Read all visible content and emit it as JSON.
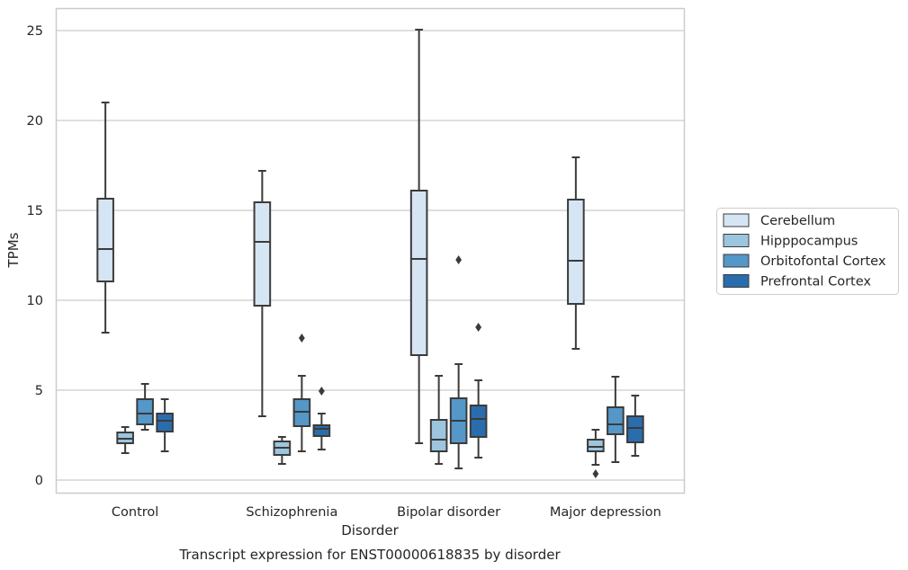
{
  "chart_data": {
    "type": "box",
    "caption": "Transcript expression for ENST00000618835 by disorder",
    "xlabel": "Disorder",
    "ylabel": "TPMs",
    "ylim": [
      -0.7,
      26.2
    ],
    "yticks": [
      0,
      5,
      10,
      15,
      20,
      25
    ],
    "grid": "horizontal",
    "legend_position": "right",
    "categories": [
      "Control",
      "Schizophrenia",
      "Bipolar disorder",
      "Major depression"
    ],
    "series": [
      {
        "name": "Cerebellum",
        "color": "#d6e5f3",
        "boxes": [
          {
            "whisker_low": 8.2,
            "q1": 11.05,
            "median": 12.85,
            "q3": 15.65,
            "whisker_high": 21.0,
            "outliers": []
          },
          {
            "whisker_low": 3.55,
            "q1": 9.7,
            "median": 13.25,
            "q3": 15.45,
            "whisker_high": 17.2,
            "outliers": []
          },
          {
            "whisker_low": 2.05,
            "q1": 6.95,
            "median": 12.3,
            "q3": 16.1,
            "whisker_high": 25.05,
            "outliers": []
          },
          {
            "whisker_low": 7.3,
            "q1": 9.8,
            "median": 12.2,
            "q3": 15.6,
            "whisker_high": 17.95,
            "outliers": []
          }
        ]
      },
      {
        "name": "Hipppocampus",
        "color": "#9cc5de",
        "boxes": [
          {
            "whisker_low": 1.5,
            "q1": 2.05,
            "median": 2.3,
            "q3": 2.65,
            "whisker_high": 2.95,
            "outliers": []
          },
          {
            "whisker_low": 0.9,
            "q1": 1.4,
            "median": 1.8,
            "q3": 2.15,
            "whisker_high": 2.4,
            "outliers": []
          },
          {
            "whisker_low": 0.9,
            "q1": 1.6,
            "median": 2.25,
            "q3": 3.35,
            "whisker_high": 5.8,
            "outliers": []
          },
          {
            "whisker_low": 0.85,
            "q1": 1.6,
            "median": 1.85,
            "q3": 2.25,
            "whisker_high": 2.8,
            "outliers": [
              0.35
            ]
          }
        ]
      },
      {
        "name": "Orbitofontal Cortex",
        "color": "#5497c8",
        "boxes": [
          {
            "whisker_low": 2.8,
            "q1": 3.1,
            "median": 3.7,
            "q3": 4.5,
            "whisker_high": 5.35,
            "outliers": []
          },
          {
            "whisker_low": 1.6,
            "q1": 3.0,
            "median": 3.8,
            "q3": 4.5,
            "whisker_high": 5.8,
            "outliers": [
              7.9
            ]
          },
          {
            "whisker_low": 0.65,
            "q1": 2.05,
            "median": 3.3,
            "q3": 4.55,
            "whisker_high": 6.45,
            "outliers": [
              12.25
            ]
          },
          {
            "whisker_low": 1.0,
            "q1": 2.55,
            "median": 3.1,
            "q3": 4.05,
            "whisker_high": 5.75,
            "outliers": []
          }
        ]
      },
      {
        "name": "Prefrontal Cortex",
        "color": "#2a6dad",
        "boxes": [
          {
            "whisker_low": 1.6,
            "q1": 2.7,
            "median": 3.3,
            "q3": 3.7,
            "whisker_high": 4.5,
            "outliers": []
          },
          {
            "whisker_low": 1.7,
            "q1": 2.45,
            "median": 2.85,
            "q3": 3.05,
            "whisker_high": 3.7,
            "outliers": [
              4.95
            ]
          },
          {
            "whisker_low": 1.25,
            "q1": 2.4,
            "median": 3.4,
            "q3": 4.15,
            "whisker_high": 5.55,
            "outliers": [
              8.5
            ]
          },
          {
            "whisker_low": 1.35,
            "q1": 2.1,
            "median": 2.9,
            "q3": 3.55,
            "whisker_high": 4.7,
            "outliers": []
          }
        ]
      }
    ]
  }
}
